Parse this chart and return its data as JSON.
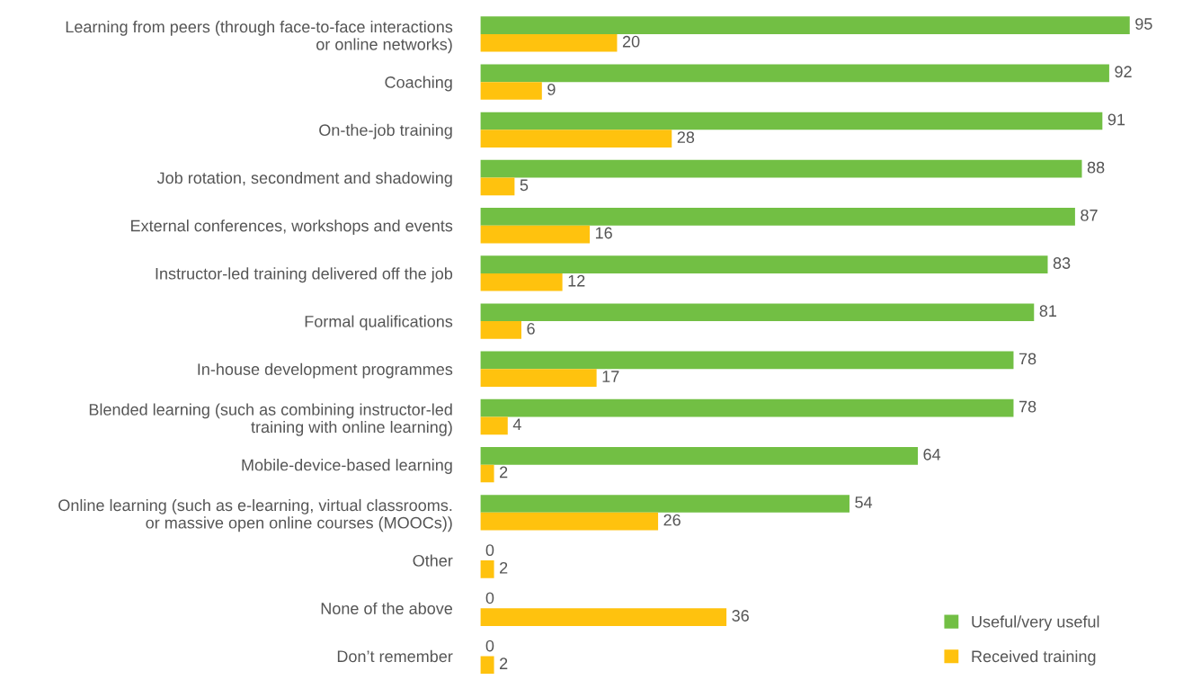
{
  "chart_data": {
    "type": "bar",
    "orientation": "horizontal",
    "categories": [
      "Learning from peers (through face-to-face interactions\nor online networks)",
      "Coaching",
      "On-the-job training",
      "Job rotation, secondment and shadowing",
      "External conferences, workshops and events",
      "Instructor-led training delivered off the job",
      "Formal qualifications",
      "In-house development programmes",
      "Blended learning (such as combining instructor-led\ntraining with online learning)",
      "Mobile-device-based learning",
      "Online learning (such as e-learning, virtual classrooms.\nor massive open online courses (MOOCs))",
      "Other",
      "None of the above",
      "Don’t remember"
    ],
    "series": [
      {
        "name": "Useful/very useful",
        "color": "#72bf44",
        "values": [
          95,
          92,
          91,
          88,
          87,
          83,
          81,
          78,
          78,
          64,
          54,
          0,
          0,
          0
        ]
      },
      {
        "name": "Received training",
        "color": "#ffc20e",
        "values": [
          20,
          9,
          28,
          5,
          16,
          12,
          6,
          17,
          4,
          2,
          26,
          2,
          36,
          2
        ]
      }
    ],
    "tick_labels": "y",
    "data_labels": true,
    "legend": "bottom right",
    "grid": false
  }
}
